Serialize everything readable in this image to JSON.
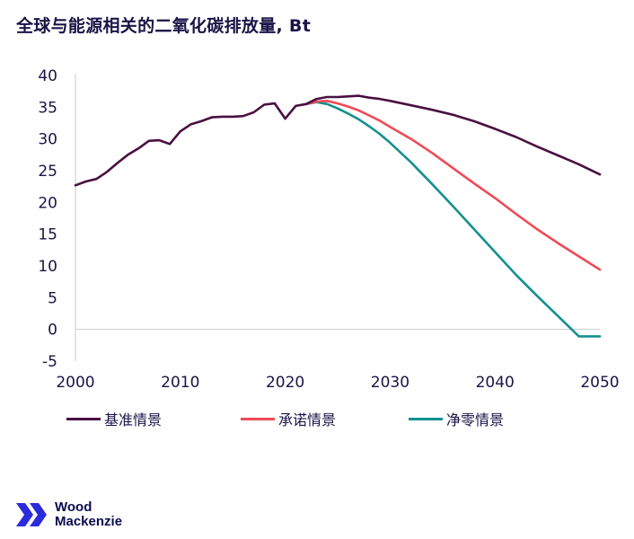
{
  "title": "全球与能源相关的二氧化碳排放量, Bt",
  "brand": {
    "name_line1": "Wood",
    "name_line2": "Mackenzie",
    "color": "#2b2bdb"
  },
  "chart_data": {
    "type": "line",
    "xlim": [
      2000,
      2050
    ],
    "ylim": [
      -5,
      40
    ],
    "x_ticks": [
      "2000",
      "2010",
      "2020",
      "2030",
      "2040",
      "2050"
    ],
    "y_ticks": [
      "40",
      "35",
      "30",
      "25",
      "20",
      "15",
      "10",
      "5",
      "0",
      "-5"
    ],
    "grid": false,
    "legend_position": "bottom",
    "series": [
      {
        "name": "基准情景",
        "color": "#4a1040",
        "x": [
          2000,
          2001,
          2002,
          2003,
          2004,
          2005,
          2006,
          2007,
          2008,
          2009,
          2010,
          2011,
          2012,
          2013,
          2014,
          2015,
          2016,
          2017,
          2018,
          2019,
          2020,
          2021,
          2022,
          2023,
          2024,
          2025,
          2026,
          2027,
          2028,
          2029,
          2030,
          2032,
          2034,
          2036,
          2038,
          2040,
          2042,
          2044,
          2046,
          2048,
          2050
        ],
        "y": [
          22.7,
          23.3,
          23.7,
          24.8,
          26.2,
          27.5,
          28.5,
          29.7,
          29.8,
          29.2,
          31.2,
          32.3,
          32.8,
          33.4,
          33.5,
          33.5,
          33.6,
          34.2,
          35.4,
          35.6,
          33.2,
          35.2,
          35.5,
          36.3,
          36.6,
          36.6,
          36.7,
          36.8,
          36.5,
          36.3,
          36.0,
          35.3,
          34.6,
          33.8,
          32.8,
          31.6,
          30.3,
          28.8,
          27.4,
          26.0,
          24.4
        ]
      },
      {
        "name": "承诺情景",
        "color": "#f04a55",
        "x": [
          2022,
          2023,
          2024,
          2025,
          2026,
          2027,
          2028,
          2029,
          2030,
          2032,
          2034,
          2036,
          2038,
          2040,
          2042,
          2044,
          2046,
          2048,
          2050
        ],
        "y": [
          35.5,
          35.9,
          36.0,
          35.6,
          35.1,
          34.5,
          33.7,
          32.9,
          31.9,
          30.0,
          27.8,
          25.4,
          23.0,
          20.7,
          18.2,
          15.8,
          13.6,
          11.5,
          9.4
        ]
      },
      {
        "name": "净零情景",
        "color": "#139090",
        "x": [
          2022,
          2023,
          2024,
          2025,
          2026,
          2027,
          2028,
          2029,
          2030,
          2032,
          2034,
          2036,
          2038,
          2040,
          2042,
          2044,
          2046,
          2048,
          2050
        ],
        "y": [
          35.5,
          35.8,
          35.5,
          34.8,
          34.0,
          33.1,
          32.0,
          30.8,
          29.4,
          26.3,
          22.9,
          19.4,
          15.8,
          12.2,
          8.6,
          5.3,
          2.1,
          -1.1,
          -1.1
        ]
      }
    ]
  }
}
